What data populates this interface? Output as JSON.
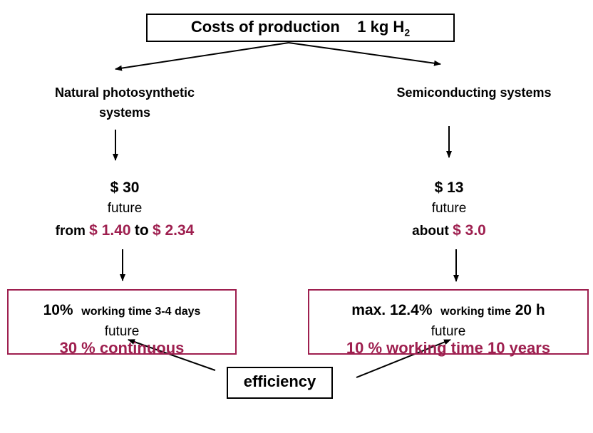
{
  "title": {
    "text": "Costs of production",
    "amount": "1 kg H",
    "subscript": "2"
  },
  "left": {
    "heading": "Natural photosynthetic systems",
    "cost": "$ 30",
    "future": "future",
    "range": {
      "from": "from",
      "low": "$ 1.40",
      "to": "to",
      "high": "$ 2.34"
    },
    "box": {
      "efficiency": "10%",
      "working": "working time 3-4 days",
      "future": "future",
      "target": "30 % continuous"
    }
  },
  "right": {
    "heading": "Semiconducting systems",
    "cost": "$ 13",
    "future": "future",
    "estimate": {
      "about": "about",
      "value": "$ 3.0"
    },
    "box": {
      "efficiency": "max. 12.4%",
      "working": "working time",
      "hours": "20 h",
      "future": "future",
      "target": "10 % working time 10 years"
    }
  },
  "bottom": {
    "label": "efficiency"
  }
}
